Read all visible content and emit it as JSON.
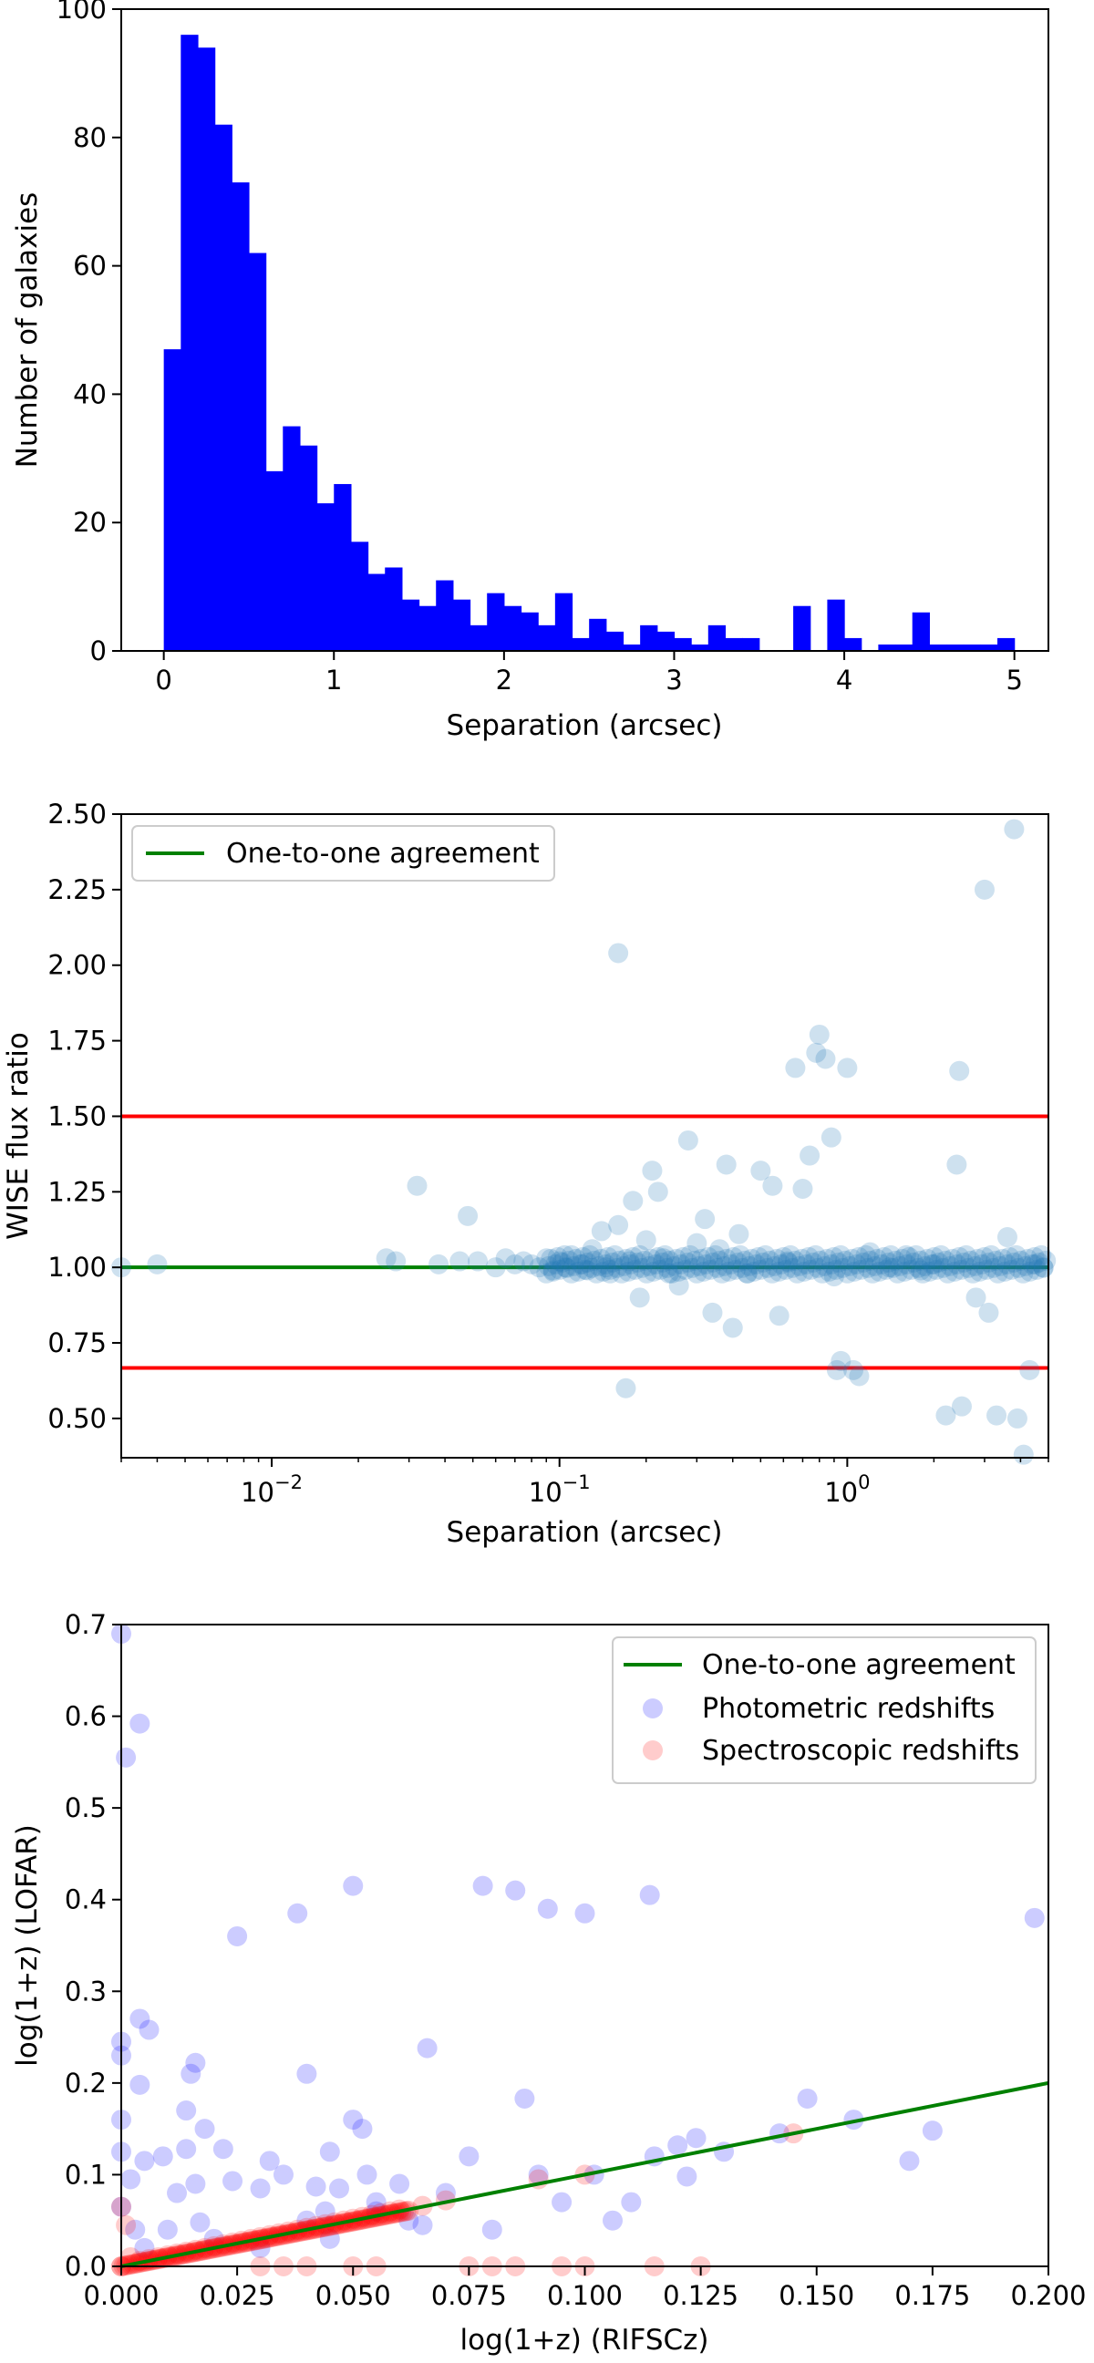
{
  "chart_data": [
    {
      "type": "bar",
      "xlabel": "Separation (arcsec)",
      "ylabel": "Number of galaxies",
      "xlim": [
        -0.25,
        5.2
      ],
      "ylim": [
        0,
        100
      ],
      "xticks": [
        "0",
        "1",
        "2",
        "3",
        "4",
        "5"
      ],
      "yticks": [
        "0",
        "20",
        "40",
        "60",
        "80",
        "100"
      ],
      "bar_color": "#0000ff",
      "bin_width": 0.1,
      "bin_starts": [
        0.0,
        0.1,
        0.2,
        0.3,
        0.4,
        0.5,
        0.6,
        0.7,
        0.8,
        0.9,
        1.0,
        1.1,
        1.2,
        1.3,
        1.4,
        1.5,
        1.6,
        1.7,
        1.8,
        1.9,
        2.0,
        2.1,
        2.2,
        2.3,
        2.4,
        2.5,
        2.6,
        2.7,
        2.8,
        2.9,
        3.0,
        3.1,
        3.2,
        3.3,
        3.4,
        3.5,
        3.6,
        3.7,
        3.8,
        3.9,
        4.0,
        4.1,
        4.2,
        4.3,
        4.4,
        4.5,
        4.6,
        4.7,
        4.8,
        4.9
      ],
      "values": [
        47,
        96,
        94,
        82,
        73,
        62,
        28,
        35,
        32,
        23,
        26,
        17,
        12,
        13,
        8,
        7,
        11,
        8,
        4,
        9,
        7,
        6,
        4,
        9,
        2,
        5,
        3,
        1,
        4,
        3,
        2,
        1,
        4,
        2,
        2,
        0,
        0,
        7,
        0,
        8,
        2,
        0,
        1,
        1,
        6,
        1,
        1,
        1,
        1,
        2
      ]
    },
    {
      "type": "scatter",
      "xlabel": "Separation (arcsec)",
      "ylabel": "WISE flux ratio",
      "xscale": "log",
      "xlim": [
        0.003,
        5.0
      ],
      "ylim": [
        0.37,
        2.5
      ],
      "xticks": [
        {
          "value": 0.01,
          "base": "10",
          "exp": "−2"
        },
        {
          "value": 0.1,
          "base": "10",
          "exp": "−1"
        },
        {
          "value": 1,
          "base": "10",
          "exp": "0"
        }
      ],
      "yticks": [
        "0.50",
        "0.75",
        "1.00",
        "1.25",
        "1.50",
        "1.75",
        "2.00",
        "2.25",
        "2.50"
      ],
      "point_color": "#1f77b4",
      "reference_lines": [
        {
          "y": 1.5,
          "color": "#ff0000"
        },
        {
          "y": 1.0,
          "color": "#008000"
        },
        {
          "y": 0.667,
          "color": "#ff0000"
        }
      ],
      "legend": {
        "position": "upper left",
        "entries": [
          {
            "label": "One-to-one agreement",
            "color": "#008000",
            "kind": "line"
          }
        ]
      },
      "points": [
        [
          0.003,
          1.0
        ],
        [
          0.004,
          1.01
        ],
        [
          0.025,
          1.03
        ],
        [
          0.027,
          1.02
        ],
        [
          0.032,
          1.27
        ],
        [
          0.038,
          1.01
        ],
        [
          0.045,
          1.02
        ],
        [
          0.048,
          1.17
        ],
        [
          0.052,
          1.02
        ],
        [
          0.06,
          1.0
        ],
        [
          0.065,
          1.03
        ],
        [
          0.07,
          1.01
        ],
        [
          0.075,
          1.02
        ],
        [
          0.08,
          1.01
        ],
        [
          0.085,
          1.0
        ],
        [
          0.09,
          1.03
        ],
        [
          0.095,
          0.99
        ],
        [
          0.1,
          1.02
        ],
        [
          0.105,
          1.0
        ],
        [
          0.11,
          1.04
        ],
        [
          0.12,
          1.01
        ],
        [
          0.125,
          0.99
        ],
        [
          0.13,
          1.06
        ],
        [
          0.14,
          1.12
        ],
        [
          0.145,
          1.0
        ],
        [
          0.15,
          0.98
        ],
        [
          0.16,
          2.04
        ],
        [
          0.16,
          1.14
        ],
        [
          0.17,
          0.6
        ],
        [
          0.175,
          1.02
        ],
        [
          0.18,
          1.22
        ],
        [
          0.19,
          0.9
        ],
        [
          0.2,
          1.09
        ],
        [
          0.21,
          1.32
        ],
        [
          0.22,
          1.25
        ],
        [
          0.23,
          1.03
        ],
        [
          0.24,
          0.98
        ],
        [
          0.26,
          0.94
        ],
        [
          0.28,
          1.42
        ],
        [
          0.3,
          1.08
        ],
        [
          0.32,
          1.16
        ],
        [
          0.34,
          0.85
        ],
        [
          0.36,
          1.06
        ],
        [
          0.38,
          1.34
        ],
        [
          0.4,
          0.8
        ],
        [
          0.42,
          1.11
        ],
        [
          0.45,
          0.98
        ],
        [
          0.5,
          1.32
        ],
        [
          0.55,
          1.27
        ],
        [
          0.58,
          0.84
        ],
        [
          0.62,
          1.02
        ],
        [
          0.66,
          1.66
        ],
        [
          0.7,
          1.26
        ],
        [
          0.74,
          1.37
        ],
        [
          0.78,
          1.71
        ],
        [
          0.8,
          1.77
        ],
        [
          0.84,
          1.69
        ],
        [
          0.88,
          1.43
        ],
        [
          0.9,
          0.97
        ],
        [
          0.92,
          0.66
        ],
        [
          0.95,
          0.69
        ],
        [
          1.0,
          1.66
        ],
        [
          1.05,
          0.66
        ],
        [
          1.1,
          0.64
        ],
        [
          1.2,
          1.05
        ],
        [
          1.4,
          1.0
        ],
        [
          1.6,
          1.04
        ],
        [
          1.8,
          0.99
        ],
        [
          2.0,
          1.01
        ],
        [
          2.2,
          0.51
        ],
        [
          2.4,
          1.34
        ],
        [
          2.45,
          1.65
        ],
        [
          2.5,
          0.54
        ],
        [
          2.8,
          0.9
        ],
        [
          3.0,
          2.25
        ],
        [
          3.1,
          0.85
        ],
        [
          3.3,
          0.51
        ],
        [
          3.6,
          1.1
        ],
        [
          3.8,
          2.45
        ],
        [
          3.9,
          0.5
        ],
        [
          4.1,
          0.38
        ],
        [
          4.3,
          0.66
        ],
        [
          4.5,
          1.01
        ],
        [
          4.8,
          1.0
        ]
      ]
    },
    {
      "type": "scatter",
      "xlabel": "log(1+z) (RIFSCz)",
      "ylabel": "log(1+z) (LOFAR)",
      "xlim": [
        0.0,
        0.2
      ],
      "ylim": [
        0.0,
        0.7
      ],
      "xticks": [
        "0.000",
        "0.025",
        "0.050",
        "0.075",
        "0.100",
        "0.125",
        "0.150",
        "0.175",
        "0.200"
      ],
      "yticks": [
        "0.0",
        "0.1",
        "0.2",
        "0.3",
        "0.4",
        "0.5",
        "0.6",
        "0.7"
      ],
      "legend": {
        "position": "upper right",
        "entries": [
          {
            "label": "One-to-one agreement",
            "color": "#008000",
            "kind": "line"
          },
          {
            "label": "Photometric redshifts",
            "color": "#0000ff",
            "kind": "marker"
          },
          {
            "label": "Spectroscopic redshifts",
            "color": "#ff0000",
            "kind": "marker"
          }
        ]
      },
      "series": [
        {
          "name": "Photometric redshifts",
          "color": "#0000ff",
          "points": [
            [
              0.0,
              0.69
            ],
            [
              0.001,
              0.555
            ],
            [
              0.004,
              0.592
            ],
            [
              0.0,
              0.245
            ],
            [
              0.0,
              0.23
            ],
            [
              0.004,
              0.27
            ],
            [
              0.006,
              0.258
            ],
            [
              0.004,
              0.198
            ],
            [
              0.0,
              0.16
            ],
            [
              0.0,
              0.125
            ],
            [
              0.002,
              0.095
            ],
            [
              0.0,
              0.065
            ],
            [
              0.003,
              0.04
            ],
            [
              0.005,
              0.115
            ],
            [
              0.009,
              0.12
            ],
            [
              0.012,
              0.08
            ],
            [
              0.014,
              0.17
            ],
            [
              0.015,
              0.21
            ],
            [
              0.016,
              0.222
            ],
            [
              0.014,
              0.128
            ],
            [
              0.016,
              0.09
            ],
            [
              0.017,
              0.048
            ],
            [
              0.018,
              0.15
            ],
            [
              0.022,
              0.128
            ],
            [
              0.024,
              0.093
            ],
            [
              0.025,
              0.36
            ],
            [
              0.03,
              0.085
            ],
            [
              0.032,
              0.115
            ],
            [
              0.035,
              0.1
            ],
            [
              0.038,
              0.385
            ],
            [
              0.04,
              0.21
            ],
            [
              0.042,
              0.087
            ],
            [
              0.044,
              0.06
            ],
            [
              0.045,
              0.125
            ],
            [
              0.047,
              0.085
            ],
            [
              0.05,
              0.415
            ],
            [
              0.05,
              0.16
            ],
            [
              0.052,
              0.15
            ],
            [
              0.053,
              0.1
            ],
            [
              0.055,
              0.07
            ],
            [
              0.06,
              0.09
            ],
            [
              0.062,
              0.05
            ],
            [
              0.066,
              0.238
            ],
            [
              0.07,
              0.08
            ],
            [
              0.075,
              0.12
            ],
            [
              0.078,
              0.415
            ],
            [
              0.08,
              0.04
            ],
            [
              0.085,
              0.41
            ],
            [
              0.087,
              0.183
            ],
            [
              0.09,
              0.1
            ],
            [
              0.092,
              0.39
            ],
            [
              0.095,
              0.07
            ],
            [
              0.1,
              0.385
            ],
            [
              0.102,
              0.1
            ],
            [
              0.106,
              0.05
            ],
            [
              0.11,
              0.07
            ],
            [
              0.114,
              0.405
            ],
            [
              0.115,
              0.12
            ],
            [
              0.12,
              0.132
            ],
            [
              0.122,
              0.098
            ],
            [
              0.124,
              0.14
            ],
            [
              0.13,
              0.125
            ],
            [
              0.142,
              0.145
            ],
            [
              0.148,
              0.183
            ],
            [
              0.158,
              0.16
            ],
            [
              0.17,
              0.115
            ],
            [
              0.175,
              0.148
            ],
            [
              0.197,
              0.38
            ],
            [
              0.005,
              0.02
            ],
            [
              0.01,
              0.04
            ],
            [
              0.02,
              0.03
            ],
            [
              0.03,
              0.02
            ],
            [
              0.04,
              0.05
            ],
            [
              0.045,
              0.03
            ],
            [
              0.055,
              0.06
            ],
            [
              0.065,
              0.045
            ]
          ]
        },
        {
          "name": "Spectroscopic redshifts",
          "color": "#ff0000",
          "points": [
            [
              0.0,
              0.0
            ],
            [
              0.0,
              0.065
            ],
            [
              0.001,
              0.045
            ],
            [
              0.002,
              0.01
            ],
            [
              0.004,
              0.006
            ],
            [
              0.006,
              0.008
            ],
            [
              0.008,
              0.01
            ],
            [
              0.01,
              0.012
            ],
            [
              0.012,
              0.014
            ],
            [
              0.014,
              0.016
            ],
            [
              0.016,
              0.018
            ],
            [
              0.018,
              0.02
            ],
            [
              0.02,
              0.022
            ],
            [
              0.022,
              0.024
            ],
            [
              0.024,
              0.026
            ],
            [
              0.026,
              0.028
            ],
            [
              0.028,
              0.03
            ],
            [
              0.03,
              0.032
            ],
            [
              0.032,
              0.034
            ],
            [
              0.034,
              0.036
            ],
            [
              0.036,
              0.038
            ],
            [
              0.038,
              0.04
            ],
            [
              0.04,
              0.042
            ],
            [
              0.042,
              0.044
            ],
            [
              0.044,
              0.046
            ],
            [
              0.046,
              0.048
            ],
            [
              0.048,
              0.05
            ],
            [
              0.05,
              0.052
            ],
            [
              0.052,
              0.054
            ],
            [
              0.054,
              0.056
            ],
            [
              0.056,
              0.058
            ],
            [
              0.058,
              0.06
            ],
            [
              0.06,
              0.062
            ],
            [
              0.065,
              0.066
            ],
            [
              0.07,
              0.072
            ],
            [
              0.09,
              0.095
            ],
            [
              0.1,
              0.1
            ],
            [
              0.145,
              0.145
            ],
            [
              0.03,
              0.0
            ],
            [
              0.035,
              0.0
            ],
            [
              0.04,
              0.0
            ],
            [
              0.05,
              0.0
            ],
            [
              0.055,
              0.0
            ],
            [
              0.075,
              0.0
            ],
            [
              0.08,
              0.0
            ],
            [
              0.085,
              0.0
            ],
            [
              0.095,
              0.0
            ],
            [
              0.1,
              0.0
            ],
            [
              0.115,
              0.0
            ],
            [
              0.125,
              0.0
            ]
          ]
        }
      ],
      "reference_lines": [
        {
          "x1": 0.0,
          "y1": 0.0,
          "x2": 0.2,
          "y2": 0.2,
          "color": "#008000"
        }
      ]
    }
  ]
}
